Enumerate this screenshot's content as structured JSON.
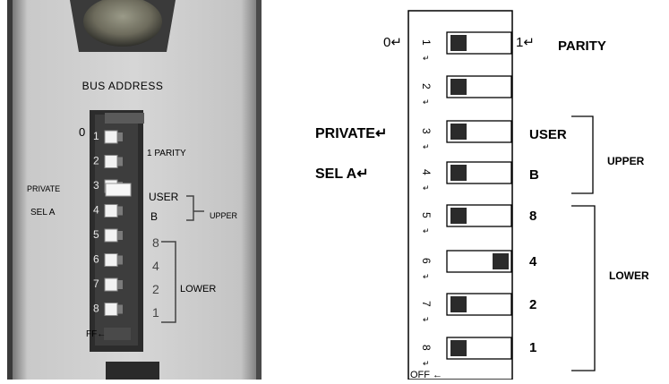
{
  "photo": {
    "header_label": "BUS ADDRESS",
    "zero_label": "0",
    "parity_label": "1 PARITY",
    "switch_numbers": [
      "1",
      "2",
      "3",
      "4",
      "5",
      "6",
      "7",
      "8"
    ],
    "private_label": "PRIVATE",
    "sel_label": "SEL A",
    "user_label": "USER",
    "b_label": "B",
    "upper_label": "UPPER",
    "lower_values": [
      "8",
      "4",
      "2",
      "1"
    ],
    "lower_label": "LOWER",
    "off_label": "FF←"
  },
  "diagram": {
    "zero_label": "0↵",
    "one_label": "1↵",
    "parity_label": "PARITY",
    "private_label": "PRIVATE↵",
    "sel_label": "SEL A↵",
    "switch_numbers": [
      "1",
      "2",
      "3",
      "4",
      "5",
      "6",
      "7",
      "8"
    ],
    "switch_positions": [
      "off",
      "off",
      "off",
      "off",
      "off",
      "on",
      "off",
      "off"
    ],
    "user_label": "USER",
    "b_label": "B",
    "upper_label": "UPPER",
    "lower_values": [
      "8",
      "4",
      "2",
      "1"
    ],
    "lower_label": "LOWER",
    "off_label": "OFF ←"
  }
}
